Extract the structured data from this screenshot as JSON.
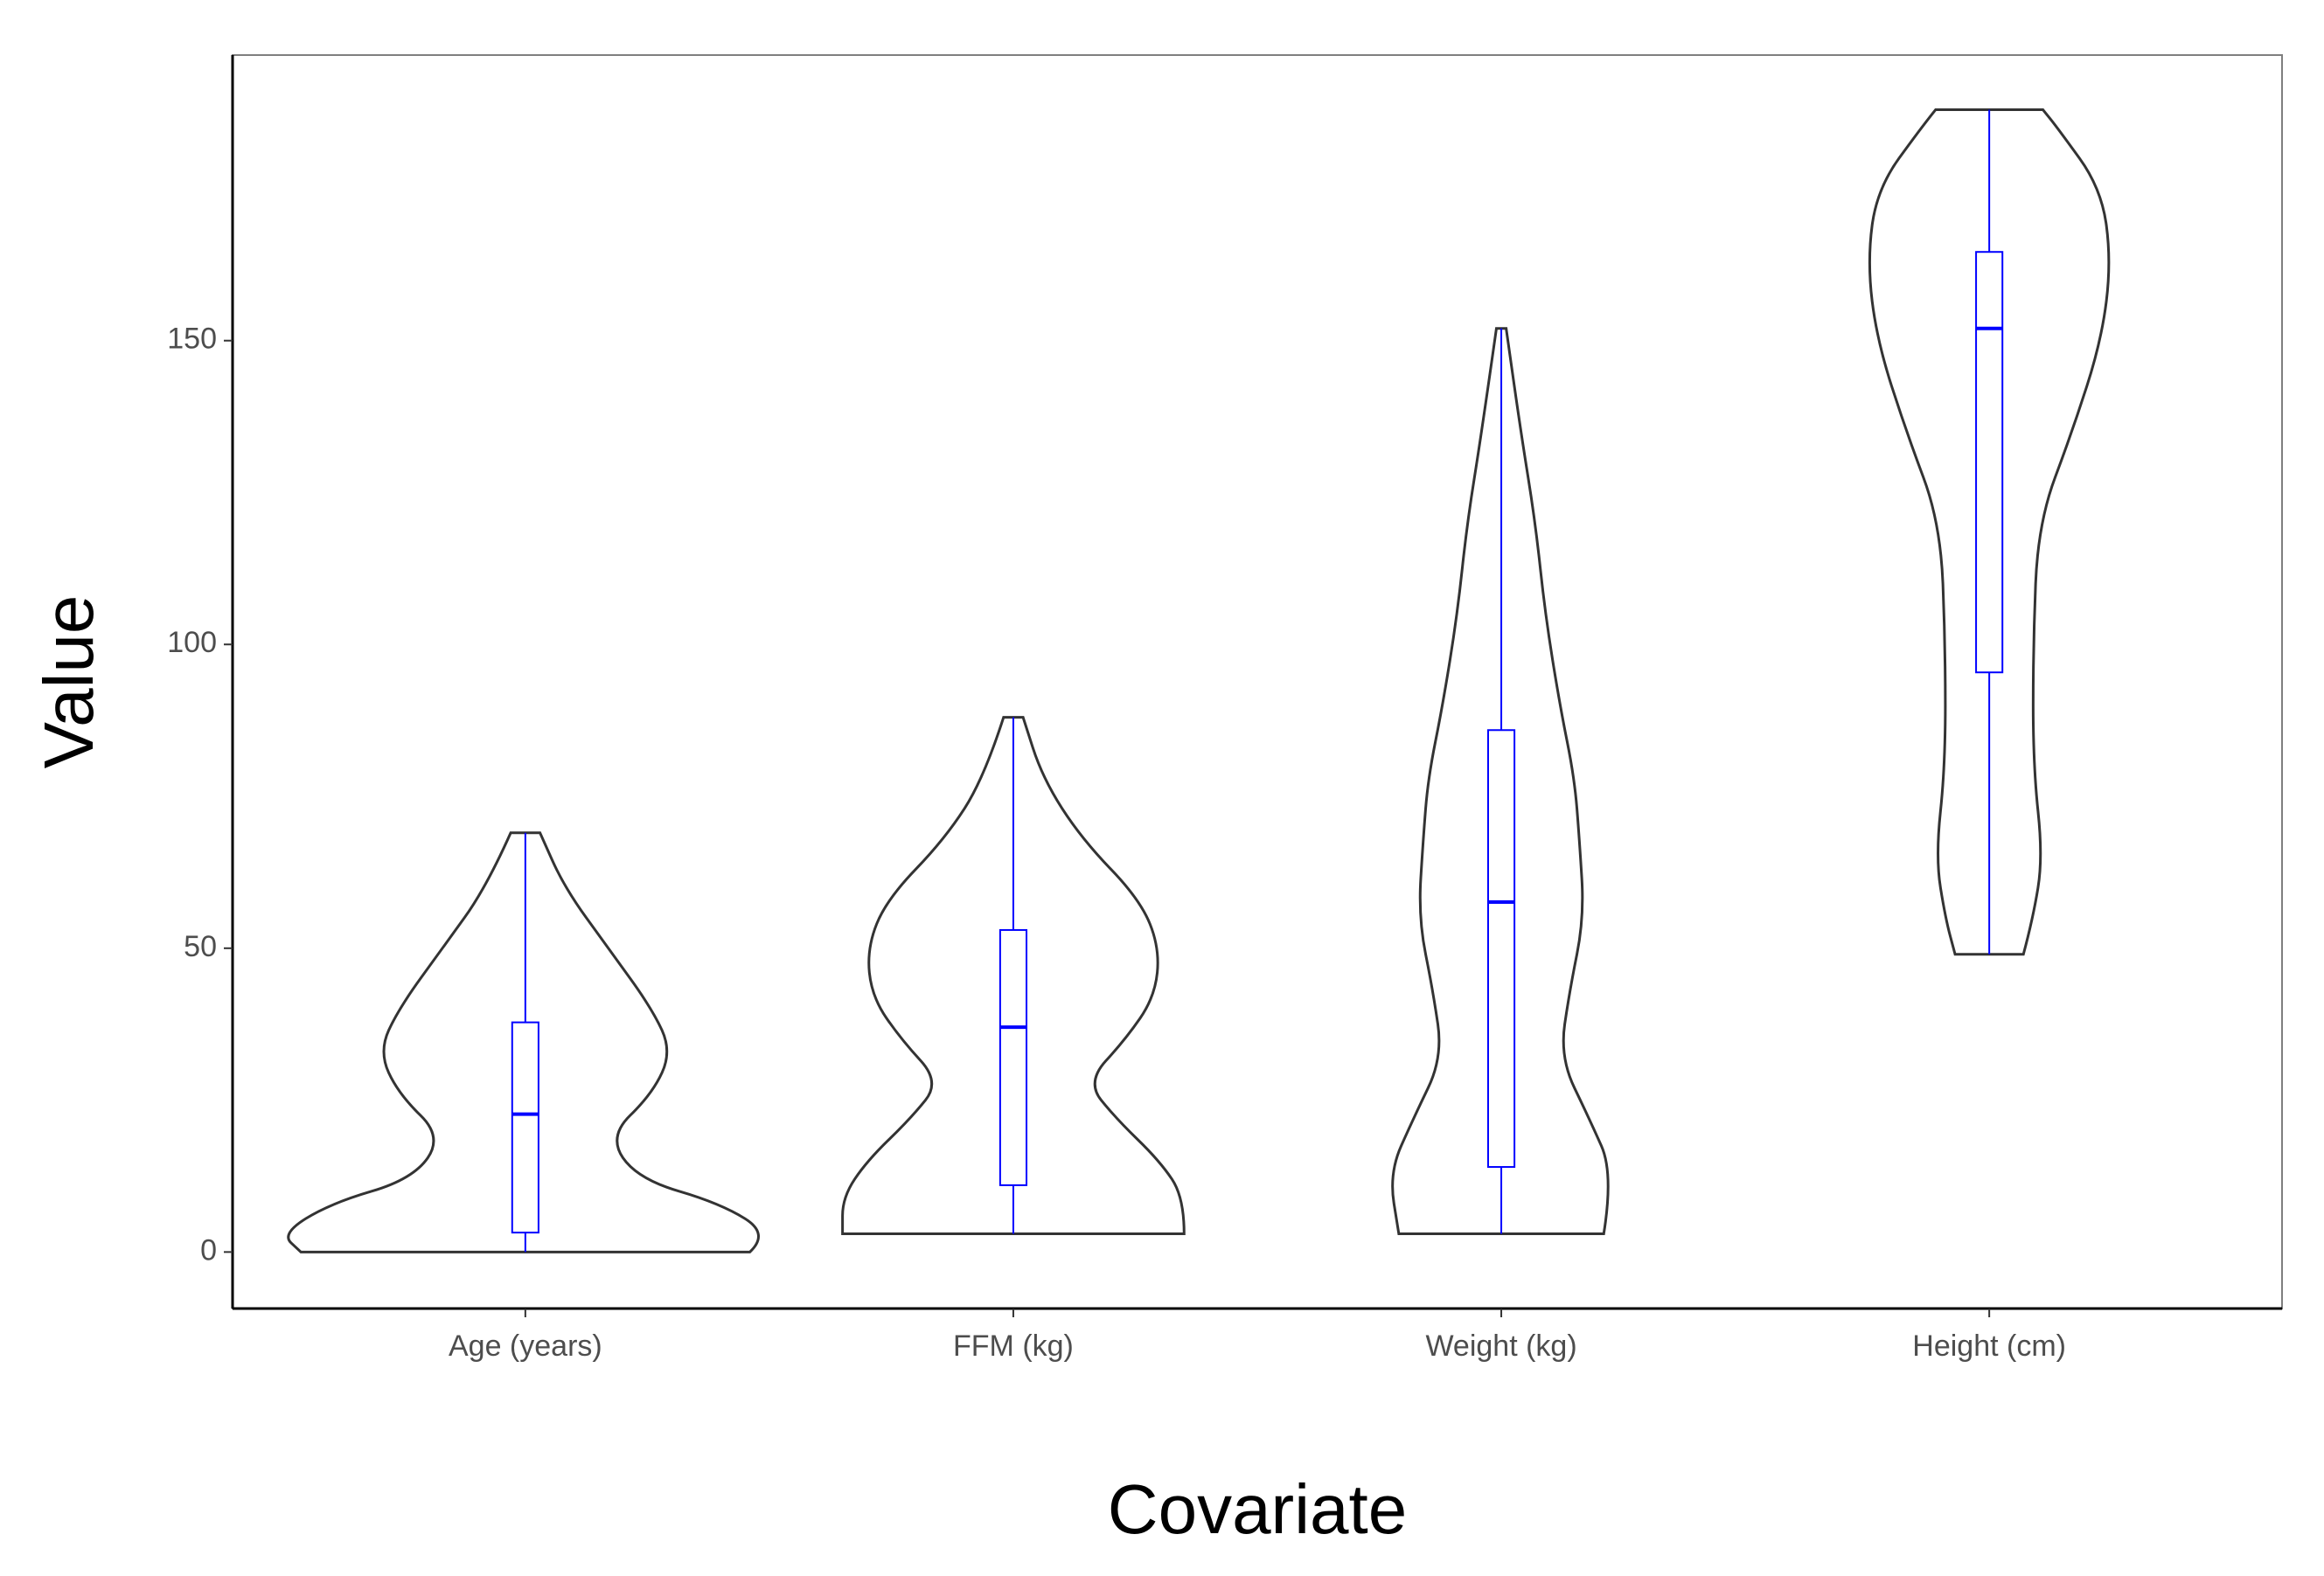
{
  "chart_data": {
    "type": "violin",
    "x_label": "Covariate",
    "y_label": "Value",
    "categories": [
      "Age (years)",
      "FFM (kg)",
      "Weight (kg)",
      "Height (cm)"
    ],
    "violin_color": "#333333",
    "box_color": "#0000ff",
    "ylim": [
      -9.3,
      197
    ],
    "yticks": [
      0,
      50,
      100,
      150
    ],
    "boxes": [
      {
        "min": 0,
        "q1": 3.2,
        "median": 22.7,
        "q3": 37.8,
        "max": 69,
        "violin_y": [
          0,
          3,
          8,
          12,
          19,
          26,
          33,
          40,
          50,
          60,
          69
        ],
        "violin_width": [
          0.46,
          0.5,
          0.4,
          0.23,
          0.17,
          0.26,
          0.3,
          0.26,
          0.17,
          0.08,
          0.03
        ]
      },
      {
        "min": 3,
        "q1": 11,
        "median": 37,
        "q3": 53,
        "max": 88,
        "violin_y": [
          3,
          9,
          15,
          22,
          28,
          35,
          42,
          50,
          58,
          68,
          78,
          88
        ],
        "violin_width": [
          0.35,
          0.35,
          0.3,
          0.21,
          0.15,
          0.23,
          0.29,
          0.3,
          0.26,
          0.14,
          0.06,
          0.02
        ]
      },
      {
        "min": 3,
        "q1": 14,
        "median": 57.6,
        "q3": 85.9,
        "max": 152,
        "violin_y": [
          3,
          13,
          22,
          32,
          43,
          55,
          68,
          78,
          90,
          105,
          120,
          135,
          152
        ],
        "violin_width": [
          0.21,
          0.23,
          0.18,
          0.12,
          0.14,
          0.17,
          0.16,
          0.15,
          0.12,
          0.09,
          0.07,
          0.04,
          0.01
        ]
      },
      {
        "min": 49,
        "q1": 95.4,
        "median": 152,
        "q3": 164.6,
        "max": 188,
        "violin_y": [
          49,
          55,
          65,
          80,
          100,
          120,
          135,
          150,
          163,
          175,
          185,
          188
        ],
        "violin_width": [
          0.07,
          0.09,
          0.11,
          0.09,
          0.09,
          0.1,
          0.17,
          0.23,
          0.25,
          0.23,
          0.14,
          0.11
        ]
      }
    ]
  }
}
